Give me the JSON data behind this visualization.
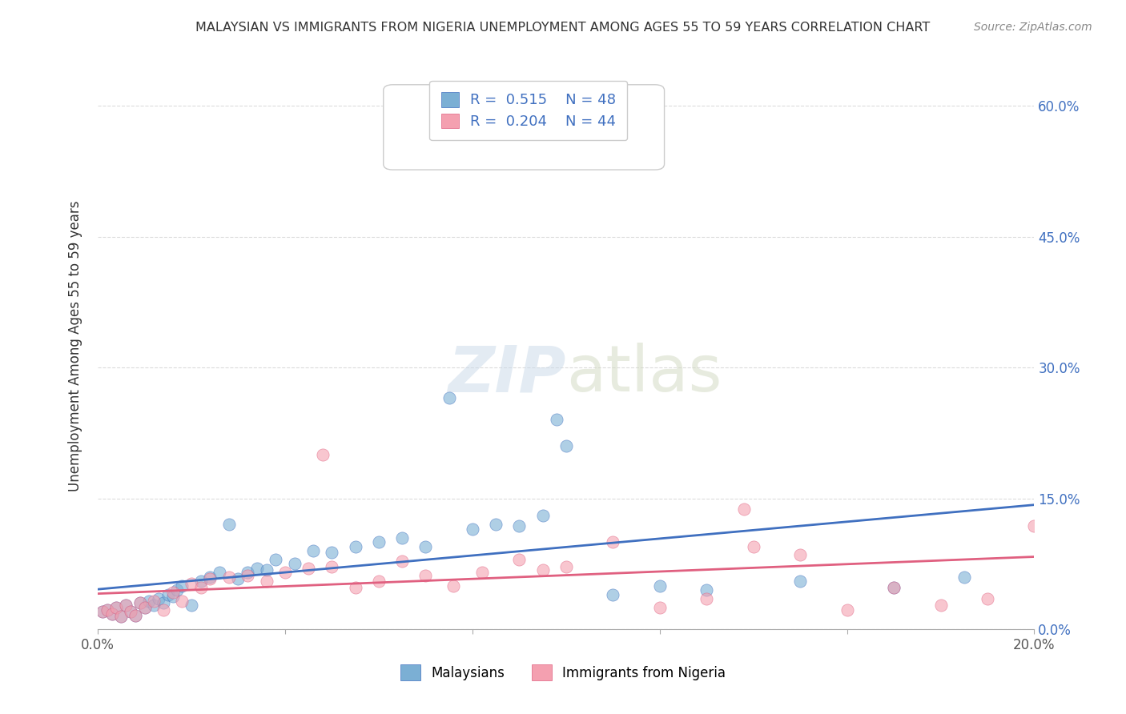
{
  "title": "MALAYSIAN VS IMMIGRANTS FROM NIGERIA UNEMPLOYMENT AMONG AGES 55 TO 59 YEARS CORRELATION CHART",
  "source": "Source: ZipAtlas.com",
  "xlabel": "",
  "ylabel": "Unemployment Among Ages 55 to 59 years",
  "xlim": [
    0,
    0.2
  ],
  "ylim": [
    0,
    0.65
  ],
  "yticks_right": [
    0.0,
    0.15,
    0.3,
    0.45,
    0.6
  ],
  "ytick_right_labels": [
    "0.0%",
    "15.0%",
    "30.0%",
    "45.0%",
    "60.0%"
  ],
  "xticks": [
    0.0,
    0.04,
    0.08,
    0.12,
    0.16,
    0.2
  ],
  "xtick_labels": [
    "0.0%",
    "",
    "",
    "",
    "",
    "20.0%"
  ],
  "legend_r_blue": "R =  0.515",
  "legend_n_blue": "N = 48",
  "legend_r_pink": "R =  0.204",
  "legend_n_pink": "N = 44",
  "legend_label_blue": "Malaysians",
  "legend_label_pink": "Immigrants from Nigeria",
  "blue_color": "#7bafd4",
  "pink_color": "#f4a0b0",
  "line_blue": "#4070c0",
  "line_pink": "#e06080",
  "watermark": "ZIPatlas",
  "blue_scatter_x": [
    0.001,
    0.002,
    0.003,
    0.004,
    0.005,
    0.006,
    0.007,
    0.008,
    0.009,
    0.01,
    0.011,
    0.012,
    0.013,
    0.014,
    0.015,
    0.016,
    0.017,
    0.018,
    0.02,
    0.022,
    0.024,
    0.026,
    0.028,
    0.03,
    0.032,
    0.034,
    0.036,
    0.038,
    0.042,
    0.046,
    0.05,
    0.055,
    0.06,
    0.065,
    0.07,
    0.075,
    0.08,
    0.085,
    0.09,
    0.095,
    0.1,
    0.11,
    0.12,
    0.13,
    0.098,
    0.15,
    0.17,
    0.185
  ],
  "blue_scatter_y": [
    0.02,
    0.022,
    0.018,
    0.025,
    0.015,
    0.028,
    0.02,
    0.016,
    0.03,
    0.025,
    0.032,
    0.028,
    0.035,
    0.03,
    0.04,
    0.038,
    0.045,
    0.05,
    0.028,
    0.055,
    0.06,
    0.065,
    0.12,
    0.058,
    0.065,
    0.07,
    0.068,
    0.08,
    0.075,
    0.09,
    0.088,
    0.095,
    0.1,
    0.105,
    0.095,
    0.265,
    0.115,
    0.12,
    0.118,
    0.13,
    0.21,
    0.04,
    0.05,
    0.045,
    0.24,
    0.055,
    0.048,
    0.06
  ],
  "pink_scatter_x": [
    0.001,
    0.002,
    0.003,
    0.004,
    0.005,
    0.006,
    0.007,
    0.008,
    0.009,
    0.01,
    0.012,
    0.014,
    0.016,
    0.018,
    0.02,
    0.022,
    0.024,
    0.028,
    0.032,
    0.036,
    0.04,
    0.045,
    0.05,
    0.055,
    0.06,
    0.065,
    0.07,
    0.076,
    0.082,
    0.09,
    0.095,
    0.1,
    0.11,
    0.12,
    0.13,
    0.14,
    0.15,
    0.16,
    0.17,
    0.18,
    0.19,
    0.2,
    0.048,
    0.138
  ],
  "pink_scatter_y": [
    0.02,
    0.022,
    0.018,
    0.025,
    0.015,
    0.028,
    0.02,
    0.016,
    0.03,
    0.025,
    0.032,
    0.022,
    0.042,
    0.032,
    0.052,
    0.048,
    0.058,
    0.06,
    0.062,
    0.055,
    0.065,
    0.07,
    0.072,
    0.048,
    0.055,
    0.078,
    0.062,
    0.05,
    0.065,
    0.08,
    0.068,
    0.072,
    0.1,
    0.025,
    0.035,
    0.095,
    0.085,
    0.022,
    0.048,
    0.028,
    0.035,
    0.118,
    0.2,
    0.138
  ]
}
